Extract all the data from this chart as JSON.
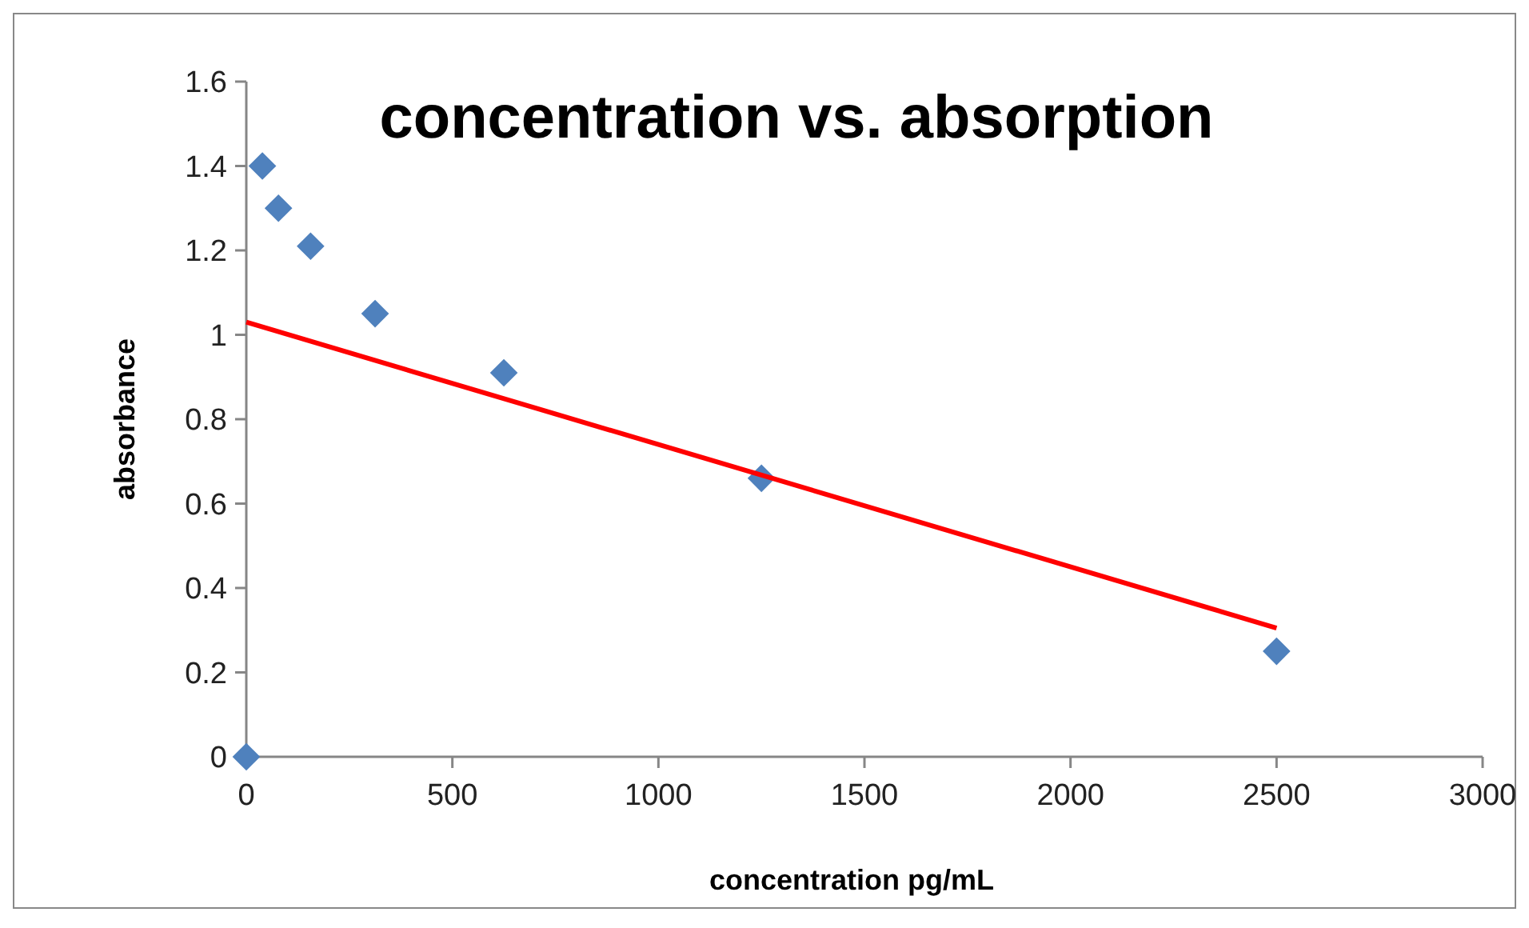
{
  "chart_data": {
    "type": "scatter",
    "title": "concentration vs. absorption",
    "xlabel": "concentration pg/mL",
    "ylabel": "absorbance",
    "xlim": [
      0,
      3000
    ],
    "xticks": [
      0,
      500,
      1000,
      1500,
      2000,
      2500,
      3000
    ],
    "ylim": [
      0,
      1.6
    ],
    "yticks": [
      0,
      0.2,
      0.4,
      0.6,
      0.8,
      1,
      1.2,
      1.4,
      1.6
    ],
    "grid": false,
    "series": [
      {
        "color": "#4f81bd",
        "marker": "diamond",
        "x": [
          0,
          39,
          78,
          156,
          312.5,
          625,
          1250,
          2500
        ],
        "values": [
          0,
          1.4,
          1.3,
          1.21,
          1.05,
          0.91,
          0.66,
          0.25
        ]
      },
      {
        "type": "line",
        "color": "#ff0000",
        "x": [
          0,
          2500
        ],
        "values": [
          1.03,
          0.305
        ]
      }
    ]
  }
}
